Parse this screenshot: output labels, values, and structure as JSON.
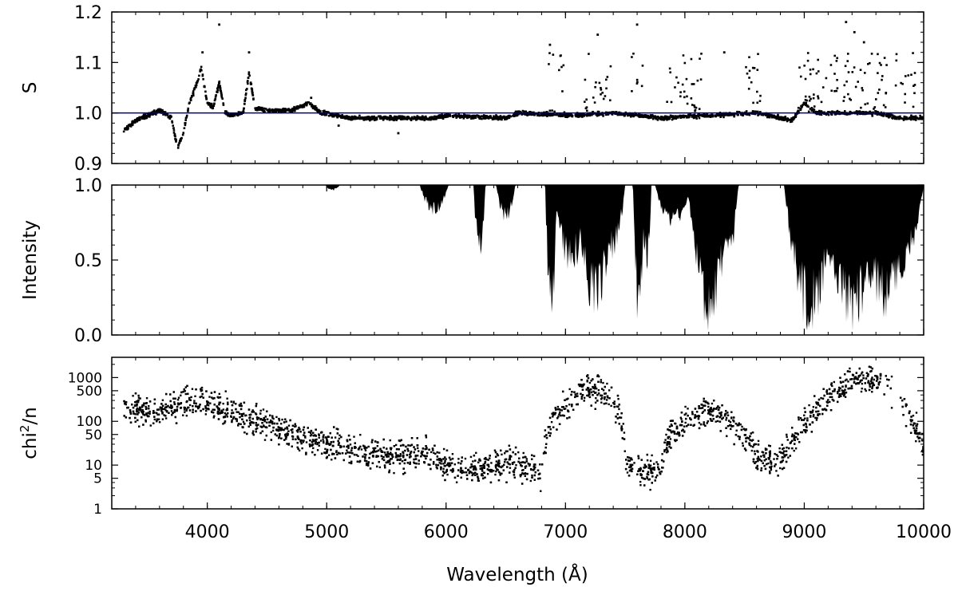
{
  "figure": {
    "xlabel": "Wavelength (Å)",
    "x_range": [
      3200,
      10000
    ],
    "x_ticks": [
      4000,
      5000,
      6000,
      7000,
      8000,
      9000,
      10000
    ],
    "x_minor_step": 200
  },
  "chart_data": [
    {
      "type": "scatter",
      "panel": "top",
      "ylabel": "S",
      "xlim": [
        3200,
        10000
      ],
      "ylim": [
        0.9,
        1.2
      ],
      "y_ticks": [
        {
          "value": 0.9,
          "label": "0.9"
        },
        {
          "value": 1.0,
          "label": "1.0"
        },
        {
          "value": 1.1,
          "label": "1.1"
        },
        {
          "value": 1.2,
          "label": "1.2"
        }
      ],
      "reference_line": {
        "y": 1.0,
        "color": "#00008b"
      },
      "point_color": "#000000",
      "baseline": [
        [
          3300,
          0.965
        ],
        [
          3400,
          0.985
        ],
        [
          3500,
          0.995
        ],
        [
          3600,
          1.005
        ],
        [
          3700,
          0.99
        ],
        [
          3750,
          0.93
        ],
        [
          3800,
          0.96
        ],
        [
          3850,
          1.02
        ],
        [
          3900,
          1.05
        ],
        [
          3950,
          1.09
        ],
        [
          4000,
          1.02
        ],
        [
          4050,
          1.01
        ],
        [
          4100,
          1.06
        ],
        [
          4150,
          1.0
        ],
        [
          4200,
          0.995
        ],
        [
          4300,
          1.0
        ],
        [
          4350,
          1.08
        ],
        [
          4400,
          1.01
        ],
        [
          4500,
          1.005
        ],
        [
          4700,
          1.005
        ],
        [
          4850,
          1.02
        ],
        [
          4950,
          1.0
        ],
        [
          5200,
          0.99
        ],
        [
          5600,
          0.99
        ],
        [
          5900,
          0.99
        ],
        [
          6000,
          0.995
        ],
        [
          6500,
          0.99
        ],
        [
          6600,
          1.0
        ],
        [
          7000,
          0.995
        ],
        [
          7400,
          1.0
        ],
        [
          7800,
          0.99
        ],
        [
          8600,
          1.0
        ],
        [
          8900,
          0.985
        ],
        [
          9000,
          1.02
        ],
        [
          9100,
          1.0
        ],
        [
          9600,
          1.0
        ],
        [
          9800,
          0.99
        ],
        [
          10000,
          0.99
        ]
      ],
      "outlier_regions": [
        [
          6850,
          7000
        ],
        [
          7150,
          7400
        ],
        [
          7550,
          7650
        ],
        [
          7850,
          8150
        ],
        [
          8500,
          8650
        ],
        [
          8950,
          9700
        ],
        [
          9750,
          9950
        ]
      ],
      "spikes": [
        [
          4100,
          1.175
        ],
        [
          4350,
          1.12
        ],
        [
          3960,
          1.12
        ],
        [
          4870,
          1.03
        ],
        [
          5100,
          0.975
        ],
        [
          5600,
          0.96
        ],
        [
          7600,
          1.175
        ],
        [
          7270,
          1.155
        ],
        [
          6870,
          1.135
        ],
        [
          8330,
          1.12
        ],
        [
          9350,
          1.18
        ],
        [
          9420,
          1.16
        ],
        [
          9500,
          1.14
        ]
      ]
    },
    {
      "type": "area",
      "panel": "middle",
      "ylabel": "Intensity",
      "xlim": [
        3200,
        10000
      ],
      "ylim": [
        0.0,
        1.0
      ],
      "y_ticks": [
        {
          "value": 0.0,
          "label": "0.0"
        },
        {
          "value": 0.5,
          "label": "0.5"
        },
        {
          "value": 1.0,
          "label": "1.0"
        }
      ],
      "fill_color": "#000000",
      "absorption_bands": [
        {
          "center": 5050,
          "width": 60,
          "depth": 0.04
        },
        {
          "center": 5900,
          "width": 120,
          "depth": 0.2
        },
        {
          "center": 6280,
          "width": 50,
          "depth": 0.55
        },
        {
          "center": 6500,
          "width": 80,
          "depth": 0.25
        },
        {
          "center": 6880,
          "width": 50,
          "depth": 1.0
        },
        {
          "center": 7050,
          "width": 150,
          "depth": 0.6
        },
        {
          "center": 7250,
          "width": 160,
          "depth": 0.95
        },
        {
          "center": 7400,
          "width": 100,
          "depth": 0.5
        },
        {
          "center": 7615,
          "width": 50,
          "depth": 1.0
        },
        {
          "center": 7680,
          "width": 40,
          "depth": 0.6
        },
        {
          "center": 7900,
          "width": 150,
          "depth": 0.3
        },
        {
          "center": 8200,
          "width": 180,
          "depth": 0.98
        },
        {
          "center": 8350,
          "width": 100,
          "depth": 0.6
        },
        {
          "center": 9050,
          "width": 220,
          "depth": 1.0
        },
        {
          "center": 9400,
          "width": 300,
          "depth": 0.98
        },
        {
          "center": 9700,
          "width": 300,
          "depth": 0.9
        }
      ]
    },
    {
      "type": "scatter",
      "panel": "bottom",
      "ylabel": "chi2/n",
      "yscale": "log",
      "xlim": [
        3200,
        10000
      ],
      "ylim": [
        1,
        2900
      ],
      "y_ticks": [
        {
          "value": 1,
          "label": "1"
        },
        {
          "value": 5,
          "label": "5"
        },
        {
          "value": 10,
          "label": "10"
        },
        {
          "value": 50,
          "label": "50"
        },
        {
          "value": 100,
          "label": "100"
        },
        {
          "value": 500,
          "label": "500"
        },
        {
          "value": 1000,
          "label": "1000"
        }
      ],
      "point_color": "#000000",
      "trend": [
        [
          3300,
          200
        ],
        [
          3600,
          180
        ],
        [
          3900,
          300
        ],
        [
          4200,
          150
        ],
        [
          4500,
          70
        ],
        [
          5000,
          30
        ],
        [
          5500,
          15
        ],
        [
          5800,
          20
        ],
        [
          6000,
          10
        ],
        [
          6300,
          8
        ],
        [
          6500,
          12
        ],
        [
          6800,
          6
        ],
        [
          7000,
          200
        ],
        [
          7200,
          600
        ],
        [
          7400,
          300
        ],
        [
          7500,
          10
        ],
        [
          7600,
          8
        ],
        [
          7800,
          8
        ],
        [
          8000,
          100
        ],
        [
          8200,
          200
        ],
        [
          8400,
          80
        ],
        [
          8600,
          15
        ],
        [
          8800,
          12
        ],
        [
          8900,
          30
        ],
        [
          9100,
          150
        ],
        [
          9300,
          600
        ],
        [
          9500,
          900
        ],
        [
          9700,
          800
        ],
        [
          9850,
          150
        ],
        [
          10000,
          20
        ]
      ]
    }
  ]
}
